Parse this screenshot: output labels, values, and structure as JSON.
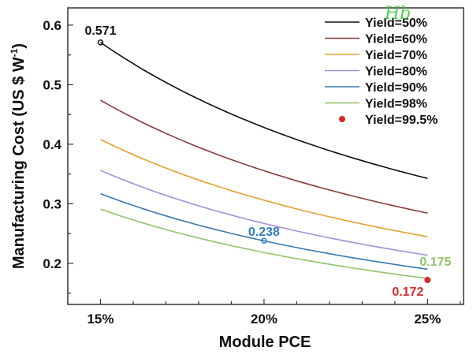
{
  "chart_data": {
    "type": "line",
    "title": "",
    "xlabel": "Module PCE",
    "ylabel": "Manufacturing Cost (US $ W",
    "ylabel_superscript": "-1",
    "ylabel_suffix": ")",
    "xlim": [
      14.0,
      26.1
    ],
    "ylim": [
      0.131,
      0.629
    ],
    "x_ticks": [
      15,
      20,
      25
    ],
    "x_tick_labels": [
      "15%",
      "20%",
      "25%"
    ],
    "x_minor_step": 1,
    "y_ticks": [
      0.2,
      0.3,
      0.4,
      0.5,
      0.6
    ],
    "y_tick_labels": [
      "0.2",
      "0.3",
      "0.4",
      "0.5",
      "0.6"
    ],
    "y_minor_step": 0.05,
    "grid": false,
    "legend_position": "top-right",
    "x": [
      15,
      16,
      17,
      18,
      19,
      20,
      21,
      22,
      23,
      24,
      25
    ],
    "series": [
      {
        "name": "Yield=50%",
        "color": "#111111",
        "marker": "line",
        "start_value": 0.571,
        "end_value": 0.343
      },
      {
        "name": "Yield=60%",
        "color": "#8b3a3a",
        "marker": "line",
        "start_value": 0.474,
        "end_value": 0.285
      },
      {
        "name": "Yield=70%",
        "color": "#e0a030",
        "marker": "line",
        "start_value": 0.408,
        "end_value": 0.245
      },
      {
        "name": "Yield=80%",
        "color": "#a58fd6",
        "marker": "line",
        "start_value": 0.356,
        "end_value": 0.214
      },
      {
        "name": "Yield=90%",
        "color": "#3a78b0",
        "marker": "line",
        "start_value": 0.317,
        "end_value": 0.19
      },
      {
        "name": "Yield=98%",
        "color": "#8fc46a",
        "marker": "line",
        "start_value": 0.291,
        "end_value": 0.175
      },
      {
        "name": "Yield=99.5%",
        "color": "#d42a2a",
        "marker": "dot",
        "points": [
          [
            25,
            0.172
          ]
        ]
      }
    ],
    "annotations": [
      {
        "text": "0.571",
        "x": 15,
        "y": 0.571,
        "color": "#111111",
        "marker": true
      },
      {
        "text": "0.238",
        "x": 20,
        "y": 0.238,
        "color": "#2e7fc0",
        "marker": true
      },
      {
        "text": "0.175",
        "x": 25,
        "y": 0.175,
        "color": "#8fc46a",
        "marker": false
      },
      {
        "text": "0.172",
        "x": 25,
        "y": 0.172,
        "color": "#d42a2a",
        "marker": false
      }
    ]
  },
  "watermark": "Hb"
}
